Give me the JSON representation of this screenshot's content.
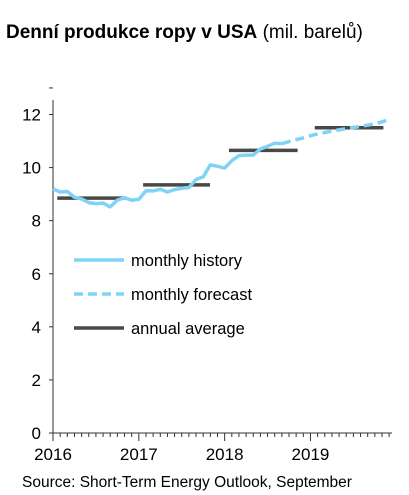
{
  "title": {
    "main": "Denní produkce ropy v USA",
    "unit": "(mil. barelů)"
  },
  "source": "Source: Short-Term Energy Outlook, September",
  "colors": {
    "history": "#7fd3f5",
    "forecast": "#7fd3f5",
    "annual": "#484848",
    "axis": "#333333"
  },
  "chart_data": {
    "type": "line",
    "ylim": [
      0,
      13
    ],
    "yticks": [
      "0",
      "2",
      "4",
      "6",
      "8",
      "10",
      "12"
    ],
    "xlim": [
      2016,
      2019.95
    ],
    "xticks": [
      "2016",
      "2017",
      "2018",
      "2019"
    ],
    "grid": false,
    "legend": {
      "placement": "center-left",
      "entries": [
        "monthly history",
        "monthly forecast",
        "annual average"
      ]
    },
    "series": [
      {
        "name": "monthly history",
        "style": "solid",
        "x": [
          2016.0,
          2016.083,
          2016.167,
          2016.25,
          2016.333,
          2016.417,
          2016.5,
          2016.583,
          2016.667,
          2016.75,
          2016.833,
          2016.917,
          2017.0,
          2017.083,
          2017.167,
          2017.25,
          2017.333,
          2017.417,
          2017.5,
          2017.583,
          2017.667,
          2017.75,
          2017.833,
          2017.917,
          2018.0,
          2018.083,
          2018.167,
          2018.25,
          2018.333,
          2018.417,
          2018.5,
          2018.583,
          2018.667
        ],
        "y": [
          9.2,
          9.08,
          9.1,
          8.88,
          8.82,
          8.68,
          8.64,
          8.66,
          8.52,
          8.78,
          8.86,
          8.77,
          8.8,
          9.12,
          9.12,
          9.18,
          9.08,
          9.17,
          9.22,
          9.25,
          9.55,
          9.65,
          10.1,
          10.05,
          9.98,
          10.26,
          10.45,
          10.47,
          10.47,
          10.7,
          10.8,
          10.92,
          10.9
        ]
      },
      {
        "name": "monthly forecast",
        "style": "dashed",
        "x": [
          2018.667,
          2018.75,
          2018.833,
          2018.917,
          2019.0,
          2019.083,
          2019.167,
          2019.25,
          2019.333,
          2019.417,
          2019.5,
          2019.583,
          2019.667,
          2019.75,
          2019.833,
          2019.917
        ],
        "y": [
          10.9,
          10.98,
          11.05,
          11.12,
          11.2,
          11.27,
          11.32,
          11.37,
          11.42,
          11.47,
          11.51,
          11.55,
          11.6,
          11.65,
          11.72,
          11.82
        ]
      },
      {
        "name": "annual average",
        "style": "steps",
        "segments": [
          {
            "x": [
              2016.05,
              2016.85
            ],
            "y": 8.85
          },
          {
            "x": [
              2017.05,
              2017.83
            ],
            "y": 9.35
          },
          {
            "x": [
              2018.05,
              2018.85
            ],
            "y": 10.65
          },
          {
            "x": [
              2019.05,
              2019.85
            ],
            "y": 11.5
          }
        ]
      }
    ]
  }
}
